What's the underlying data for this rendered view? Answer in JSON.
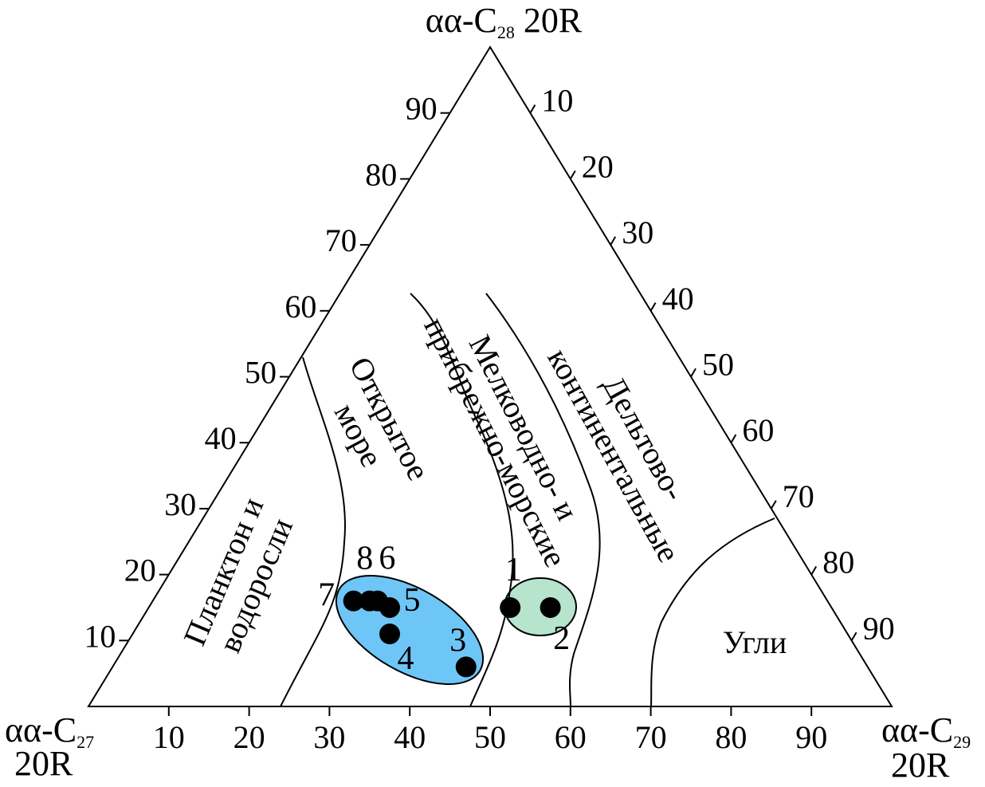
{
  "chart_data": {
    "type": "scatter",
    "subtype": "ternary",
    "axes": {
      "top": {
        "main": "αα-C",
        "sub": "28",
        "suffix": " 20R"
      },
      "left": {
        "main": "αα-C",
        "sub": "27",
        "line2": "20R"
      },
      "right": {
        "main": "αα-C",
        "sub": "29",
        "line2": "20R"
      }
    },
    "ticks": [
      10,
      20,
      30,
      40,
      50,
      60,
      70,
      80,
      90
    ],
    "regions": [
      {
        "name": "Планктон и водоросли",
        "lines": [
          "Планктон и",
          "водоросли"
        ]
      },
      {
        "name": "Открытое море",
        "lines": [
          "Открытое",
          "море"
        ]
      },
      {
        "name": "Мелководно- и прибрежно-морские",
        "lines": [
          "Мелководно- и",
          "прибрежно-морские"
        ]
      },
      {
        "name": "Дельтово-континентальные",
        "lines": [
          "Дельтово-",
          "континентальные"
        ]
      },
      {
        "name": "Угли",
        "lines": [
          "Угли"
        ]
      }
    ],
    "points": [
      {
        "label": "1",
        "c27": 40,
        "c28": 15,
        "c29": 45
      },
      {
        "label": "2",
        "c27": 35,
        "c28": 15,
        "c29": 50
      },
      {
        "label": "3",
        "c27": 50,
        "c28": 6,
        "c29": 44
      },
      {
        "label": "4",
        "c27": 57,
        "c28": 11,
        "c29": 32
      },
      {
        "label": "5",
        "c27": 55,
        "c28": 15,
        "c29": 30
      },
      {
        "label": "6",
        "c27": 56,
        "c28": 16,
        "c29": 28
      },
      {
        "label": "7",
        "c27": 59,
        "c28": 16,
        "c29": 25
      },
      {
        "label": "8",
        "c27": 57,
        "c28": 16,
        "c29": 27
      }
    ],
    "groups": [
      {
        "name": "group-blue",
        "members": [
          "3",
          "4",
          "5",
          "6",
          "7",
          "8"
        ],
        "color": "#6ec6f7"
      },
      {
        "name": "group-green",
        "members": [
          "1",
          "2"
        ],
        "color": "#b7e4cc"
      }
    ],
    "colors": {
      "line": "#000000",
      "point": "#000000"
    }
  }
}
